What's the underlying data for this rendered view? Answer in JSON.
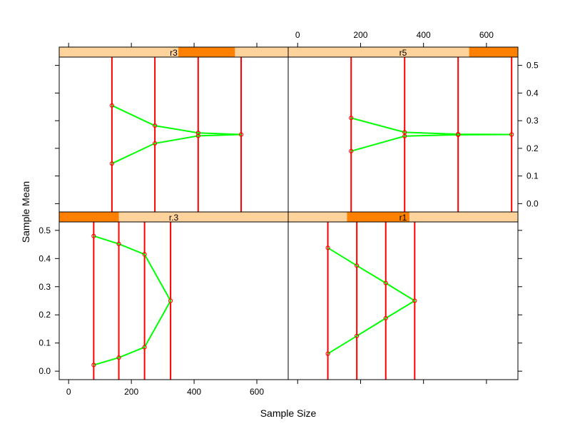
{
  "chart_data": {
    "type": "trellis-line",
    "xlabel": "Sample Size",
    "ylabel": "Sample Mean",
    "xlim": [
      -30,
      700
    ],
    "ylim": [
      -0.03,
      0.53
    ],
    "xticks": [
      0,
      200,
      400,
      600
    ],
    "yticks": [
      0.0,
      0.1,
      0.2,
      0.3,
      0.4,
      0.5
    ],
    "colors": {
      "strip_bg": "#ffd39b",
      "strip_fill": "#ff7f00",
      "drop_lines": "#ff0000",
      "series_line": "#00ff00",
      "points": "#ff0000",
      "panel_border": "#000000"
    },
    "panels": [
      {
        "label": "r3",
        "row": "top",
        "col": "left",
        "strip_range": [
          350,
          530
        ],
        "points": [
          {
            "x": 138,
            "y": 0.355
          },
          {
            "x": 275,
            "y": 0.282
          },
          {
            "x": 413,
            "y": 0.256
          },
          {
            "x": 550,
            "y": 0.25
          },
          {
            "x": 413,
            "y": 0.245
          },
          {
            "x": 275,
            "y": 0.218
          },
          {
            "x": 138,
            "y": 0.145
          }
        ]
      },
      {
        "label": "r5",
        "row": "top",
        "col": "right",
        "strip_range": [
          545,
          700
        ],
        "points": [
          {
            "x": 170,
            "y": 0.31
          },
          {
            "x": 340,
            "y": 0.258
          },
          {
            "x": 510,
            "y": 0.251
          },
          {
            "x": 680,
            "y": 0.25
          },
          {
            "x": 510,
            "y": 0.249
          },
          {
            "x": 340,
            "y": 0.244
          },
          {
            "x": 170,
            "y": 0.19
          }
        ]
      },
      {
        "label": "r.3",
        "row": "bottom",
        "col": "left",
        "strip_range": [
          -30,
          160
        ],
        "points": [
          {
            "x": 80,
            "y": 0.48
          },
          {
            "x": 160,
            "y": 0.452
          },
          {
            "x": 242,
            "y": 0.415
          },
          {
            "x": 325,
            "y": 0.25
          },
          {
            "x": 242,
            "y": 0.085
          },
          {
            "x": 160,
            "y": 0.048
          },
          {
            "x": 80,
            "y": 0.022
          }
        ]
      },
      {
        "label": "r1",
        "row": "bottom",
        "col": "right",
        "strip_range": [
          157,
          355
        ],
        "points": [
          {
            "x": 96,
            "y": 0.438
          },
          {
            "x": 188,
            "y": 0.375
          },
          {
            "x": 280,
            "y": 0.313
          },
          {
            "x": 372,
            "y": 0.25
          },
          {
            "x": 280,
            "y": 0.188
          },
          {
            "x": 188,
            "y": 0.125
          },
          {
            "x": 96,
            "y": 0.062
          }
        ]
      }
    ]
  }
}
